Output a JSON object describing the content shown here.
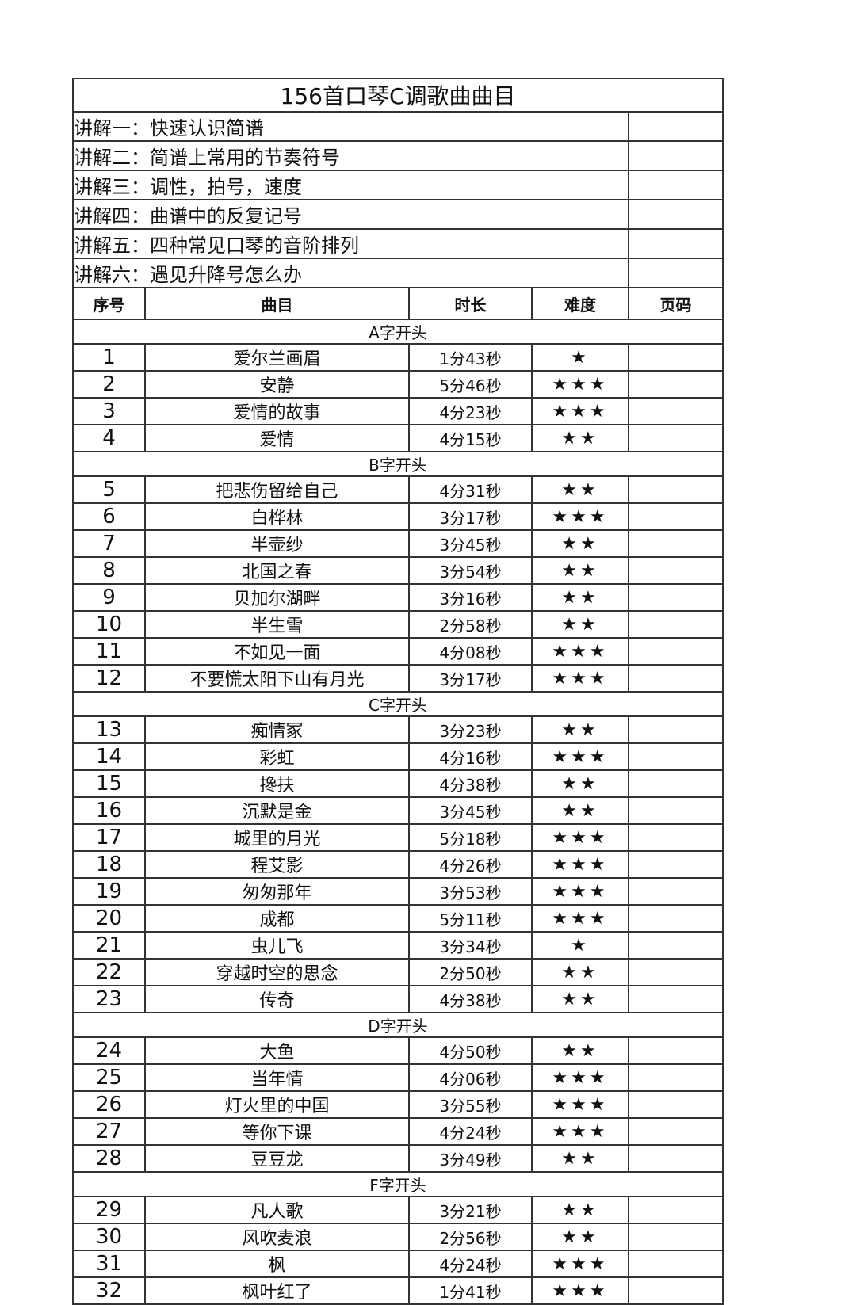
{
  "title": "156首口琴C调歌曲曲目",
  "lectures": [
    "讲解一：快速认识简谱",
    "讲解二：简谱上常用的节奏符号",
    "讲解三：调性，拍号，速度",
    "讲解四：曲谱中的反复记号",
    "讲解五：四种常见口琴的音阶排列",
    "讲解六：遇见升降号怎么办"
  ],
  "headers": [
    "序号",
    "曲目",
    "时长",
    "难度",
    "页码"
  ],
  "groups": [
    {
      "label": "A字开头",
      "songs": [
        {
          "no": "1",
          "name": "爱尔兰画眉",
          "duration": "1分43秒",
          "difficulty": "★"
        },
        {
          "no": "2",
          "name": "安静",
          "duration": "5分46秒",
          "difficulty": "★★★"
        },
        {
          "no": "3",
          "name": "爱情的故事",
          "duration": "4分23秒",
          "difficulty": "★★★"
        },
        {
          "no": "4",
          "name": "爱情",
          "duration": "4分15秒",
          "difficulty": "★★"
        }
      ]
    },
    {
      "label": "B字开头",
      "songs": [
        {
          "no": "5",
          "name": "把悲伤留给自己",
          "duration": "4分31秒",
          "difficulty": "★★"
        },
        {
          "no": "6",
          "name": "白桦林",
          "duration": "3分17秒",
          "difficulty": "★★★"
        },
        {
          "no": "7",
          "name": "半壶纱",
          "duration": "3分45秒",
          "difficulty": "★★"
        },
        {
          "no": "8",
          "name": "北国之春",
          "duration": "3分54秒",
          "difficulty": "★★"
        },
        {
          "no": "9",
          "name": "贝加尔湖畔",
          "duration": "3分16秒",
          "difficulty": "★★"
        },
        {
          "no": "10",
          "name": "半生雪",
          "duration": "2分58秒",
          "difficulty": "★★"
        },
        {
          "no": "11",
          "name": "不如见一面",
          "duration": "4分08秒",
          "difficulty": "★★★"
        },
        {
          "no": "12",
          "name": "不要慌太阳下山有月光",
          "duration": "3分17秒",
          "difficulty": "★★★"
        }
      ]
    },
    {
      "label": "C字开头",
      "songs": [
        {
          "no": "13",
          "name": "痴情冢",
          "duration": "3分23秒",
          "difficulty": "★★"
        },
        {
          "no": "14",
          "name": "彩虹",
          "duration": "4分16秒",
          "difficulty": "★★★"
        },
        {
          "no": "15",
          "name": "搀扶",
          "duration": "4分38秒",
          "difficulty": "★★"
        },
        {
          "no": "16",
          "name": "沉默是金",
          "duration": "3分45秒",
          "difficulty": "★★"
        },
        {
          "no": "17",
          "name": "城里的月光",
          "duration": "5分18秒",
          "difficulty": "★★★"
        },
        {
          "no": "18",
          "name": "程艾影",
          "duration": "4分26秒",
          "difficulty": "★★★"
        },
        {
          "no": "19",
          "name": "匆匆那年",
          "duration": "3分53秒",
          "difficulty": "★★★"
        },
        {
          "no": "20",
          "name": "成都",
          "duration": "5分11秒",
          "difficulty": "★★★"
        },
        {
          "no": "21",
          "name": "虫儿飞",
          "duration": "3分34秒",
          "difficulty": "★"
        },
        {
          "no": "22",
          "name": "穿越时空的思念",
          "duration": "2分50秒",
          "difficulty": "★★"
        },
        {
          "no": "23",
          "name": "传奇",
          "duration": "4分38秒",
          "difficulty": "★★"
        }
      ]
    },
    {
      "label": "D字开头",
      "songs": [
        {
          "no": "24",
          "name": "大鱼",
          "duration": "4分50秒",
          "difficulty": "★★"
        },
        {
          "no": "25",
          "name": "当年情",
          "duration": "4分06秒",
          "difficulty": "★★★"
        },
        {
          "no": "26",
          "name": "灯火里的中国",
          "duration": "3分55秒",
          "difficulty": "★★★"
        },
        {
          "no": "27",
          "name": "等你下课",
          "duration": "4分24秒",
          "difficulty": "★★★"
        },
        {
          "no": "28",
          "name": "豆豆龙",
          "duration": "3分49秒",
          "difficulty": "★★"
        }
      ]
    },
    {
      "label": "F字开头",
      "songs": [
        {
          "no": "29",
          "name": "凡人歌",
          "duration": "3分21秒",
          "difficulty": "★★"
        },
        {
          "no": "30",
          "name": "风吹麦浪",
          "duration": "2分56秒",
          "difficulty": "★★"
        },
        {
          "no": "31",
          "name": "枫",
          "duration": "4分24秒",
          "difficulty": "★★★"
        },
        {
          "no": "32",
          "name": "枫叶红了",
          "duration": "1分41秒",
          "difficulty": "★★★"
        }
      ]
    }
  ]
}
